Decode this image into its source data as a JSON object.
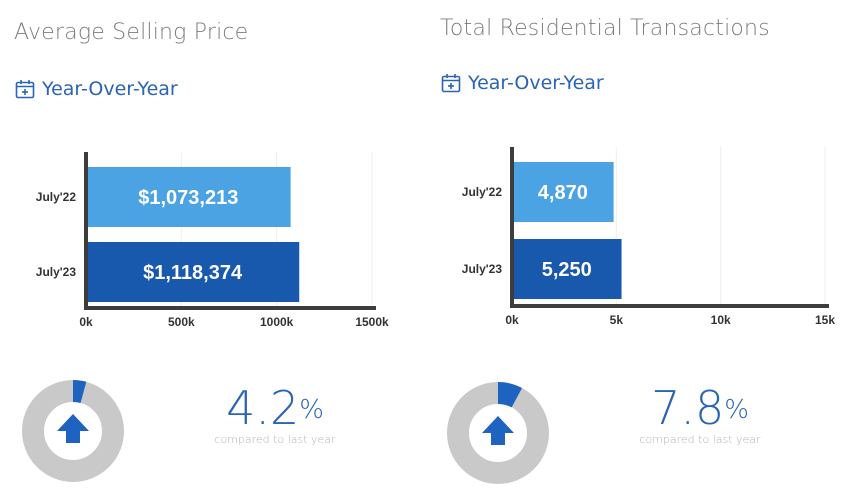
{
  "colors": {
    "bar_prior": "#4ba3e3",
    "bar_current": "#1858ad",
    "axis": "#3d3d3d",
    "grid": "#eeeeee",
    "donut_track": "#c9c9c9",
    "donut_fill": "#1e63c0",
    "arrow": "#1e63c0"
  },
  "panels": [
    {
      "title": "Average Selling Price",
      "subtitle": "Year-Over-Year",
      "subtitle_icon": "calendar-plus-icon",
      "chart_data": {
        "type": "bar",
        "orientation": "horizontal",
        "title": "Average Selling Price",
        "categories": [
          "July'22",
          "July'23"
        ],
        "values": [
          1073213,
          1118374
        ],
        "value_labels": [
          "$1,073,213",
          "$1,118,374"
        ],
        "xlim": [
          0,
          1500000
        ],
        "ticks": [
          0,
          500000,
          1000000,
          1500000
        ],
        "tick_labels": [
          "0k",
          "500k",
          "1000k",
          "1500k"
        ],
        "xlabel": "",
        "ylabel": ""
      },
      "change": {
        "value": "4.2",
        "percent_sign": "%",
        "caption": "compared to last year",
        "direction": "up",
        "donut_fraction": 0.042
      }
    },
    {
      "title": "Total Residential Transactions",
      "subtitle": "Year-Over-Year",
      "subtitle_icon": "calendar-plus-icon",
      "chart_data": {
        "type": "bar",
        "orientation": "horizontal",
        "title": "Total Residential Transactions",
        "categories": [
          "July'22",
          "July'23"
        ],
        "values": [
          4870,
          5250
        ],
        "value_labels": [
          "4,870",
          "5,250"
        ],
        "xlim": [
          0,
          15000
        ],
        "ticks": [
          0,
          5000,
          10000,
          15000
        ],
        "tick_labels": [
          "0k",
          "5k",
          "10k",
          "15k"
        ],
        "xlabel": "",
        "ylabel": ""
      },
      "change": {
        "value": "7.8",
        "percent_sign": "%",
        "caption": "compared to last year",
        "direction": "up",
        "donut_fraction": 0.078
      }
    }
  ]
}
